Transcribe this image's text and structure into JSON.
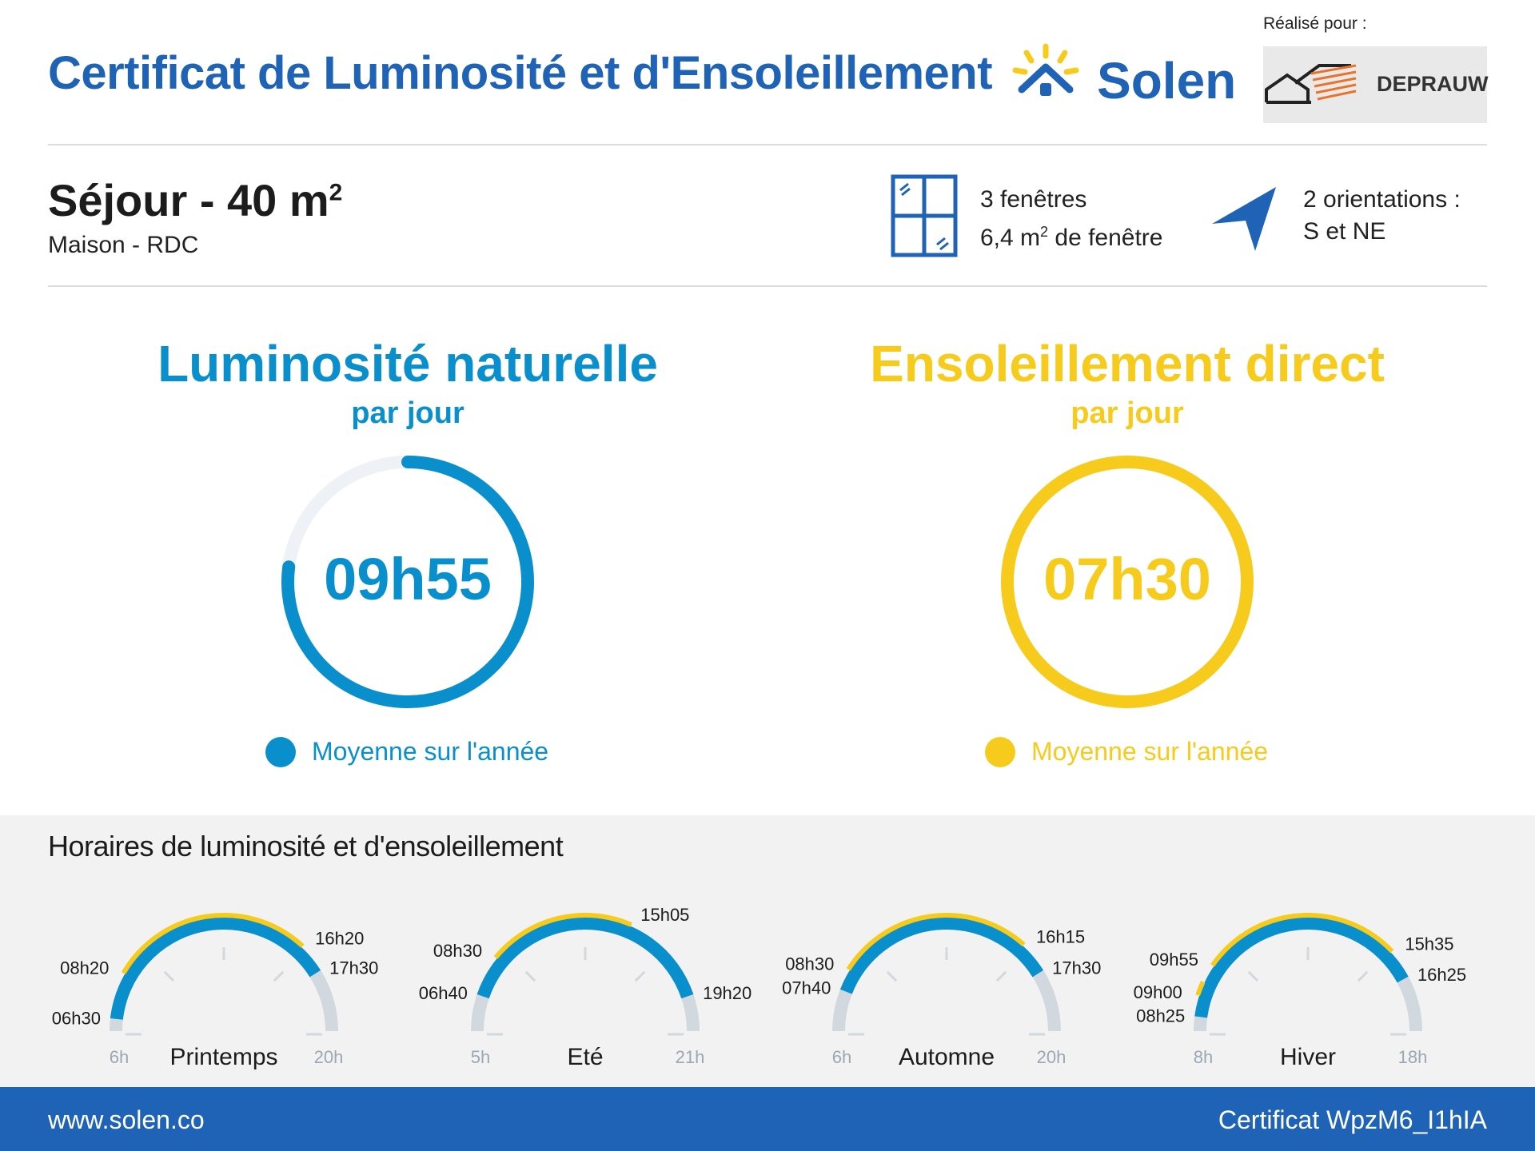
{
  "header": {
    "title": "Certificat de Luminosité et d'Ensoleillement",
    "brand": "Solen",
    "realise_pour": "Réalisé pour :",
    "client_logo_text": "DEPRAUW"
  },
  "room": {
    "name": "Séjour - 40 m",
    "name_sup": "2",
    "subtitle": "Maison - RDC"
  },
  "windows": {
    "line1": "3 fenêtres",
    "line2_a": "6,4 m",
    "line2_sup": "2",
    "line2_b": " de fenêtre"
  },
  "orientations": {
    "line1": "2 orientations :",
    "line2": "S et NE"
  },
  "luminosite": {
    "title": "Luminosité naturelle",
    "subtitle": "par jour",
    "value": "09h55",
    "fraction_of_ring": 0.77,
    "legend": "Moyenne sur l'année"
  },
  "ensoleillement": {
    "title": "Ensoleillement direct",
    "subtitle": "par jour",
    "value": "07h30",
    "fraction_of_ring": 1.0,
    "legend": "Moyenne sur l'année"
  },
  "horaires": {
    "title": "Horaires de luminosité et d'ensoleillement",
    "seasons": [
      {
        "name": "Printemps",
        "start_label": "6h",
        "end_label": "20h",
        "lum_start": "06h30",
        "lum_end": "17h30",
        "sun_start": "08h20",
        "sun_end": "16h20"
      },
      {
        "name": "Eté",
        "start_label": "5h",
        "end_label": "21h",
        "lum_start": "06h40",
        "lum_end": "19h20",
        "sun_start": "08h30",
        "sun_end": "15h05"
      },
      {
        "name": "Automne",
        "start_label": "6h",
        "end_label": "20h",
        "lum_start": "07h40",
        "lum_end": "17h30",
        "sun_start": "08h30",
        "sun_end": "16h15"
      },
      {
        "name": "Hiver",
        "start_label": "8h",
        "end_label": "18h",
        "lum_start": "08h25",
        "lum_end": "16h25",
        "sun_start": "09h55",
        "sun_end": "15h35",
        "sun_start2": "09h00"
      }
    ]
  },
  "colors": {
    "brand_blue": "#1f63b6",
    "lum_blue": "#0a8fcd",
    "sun_yellow": "#f6cb1c",
    "track_grey": "#d1d9df"
  },
  "footer": {
    "website": "www.solen.co",
    "certificate_id": "Certificat WpzM6_I1hIA"
  }
}
